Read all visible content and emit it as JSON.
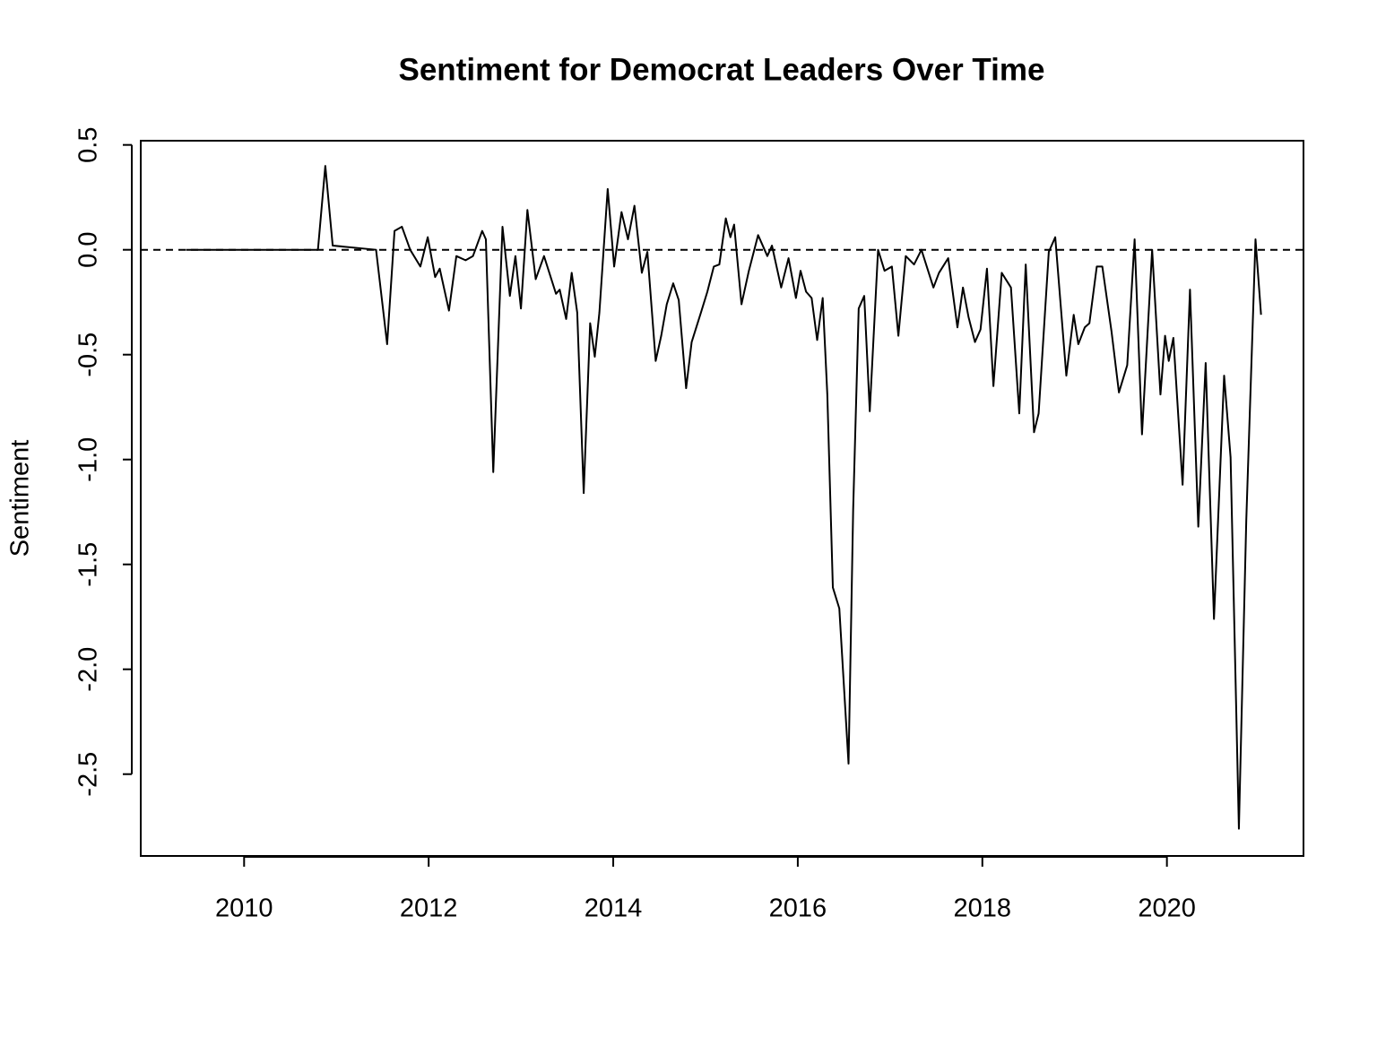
{
  "chart_data": {
    "type": "line",
    "title": "Sentiment for Democrat Leaders Over Time",
    "y_label": "Sentiment",
    "color": "#000000",
    "reference_line": 0,
    "x": [
      2009.37,
      2010.8,
      2010.88,
      2010.96,
      2011.43,
      2011.55,
      2011.63,
      2011.71,
      2011.8,
      2011.91,
      2011.99,
      2012.07,
      2012.12,
      2012.22,
      2012.3,
      2012.4,
      2012.48,
      2012.58,
      2012.62,
      2012.7,
      2012.8,
      2012.88,
      2012.94,
      2013.0,
      2013.07,
      2013.16,
      2013.25,
      2013.38,
      2013.42,
      2013.49,
      2013.55,
      2013.61,
      2013.68,
      2013.75,
      2013.8,
      2013.85,
      2013.94,
      2014.01,
      2014.09,
      2014.16,
      2014.23,
      2014.31,
      2014.37,
      2014.46,
      2014.52,
      2014.58,
      2014.65,
      2014.71,
      2014.79,
      2014.85,
      2014.95,
      2015.02,
      2015.09,
      2015.15,
      2015.22,
      2015.27,
      2015.31,
      2015.39,
      2015.47,
      2015.57,
      2015.67,
      2015.72,
      2015.82,
      2015.9,
      2015.98,
      2016.03,
      2016.09,
      2016.15,
      2016.21,
      2016.27,
      2016.32,
      2016.38,
      2016.45,
      2016.55,
      2016.6,
      2016.66,
      2016.72,
      2016.78,
      2016.87,
      2016.94,
      2017.02,
      2017.09,
      2017.17,
      2017.26,
      2017.34,
      2017.47,
      2017.53,
      2017.63,
      2017.73,
      2017.79,
      2017.85,
      2017.92,
      2017.98,
      2018.05,
      2018.12,
      2018.21,
      2018.31,
      2018.4,
      2018.47,
      2018.56,
      2018.61,
      2018.72,
      2018.79,
      2018.91,
      2018.99,
      2019.04,
      2019.11,
      2019.16,
      2019.24,
      2019.3,
      2019.4,
      2019.48,
      2019.57,
      2019.65,
      2019.73,
      2019.84,
      2019.93,
      2019.98,
      2020.02,
      2020.07,
      2020.17,
      2020.25,
      2020.34,
      2020.42,
      2020.51,
      2020.62,
      2020.69,
      2020.78,
      2020.86,
      2020.96,
      2021.02
    ],
    "values": [
      0,
      0,
      0.4,
      0.02,
      0,
      -0.45,
      0.09,
      0.11,
      0,
      -0.08,
      0.06,
      -0.13,
      -0.09,
      -0.29,
      -0.03,
      -0.05,
      -0.03,
      0.09,
      0.05,
      -1.06,
      0.11,
      -0.22,
      -0.03,
      -0.28,
      0.19,
      -0.14,
      -0.03,
      -0.21,
      -0.19,
      -0.33,
      -0.11,
      -0.3,
      -1.16,
      -0.35,
      -0.51,
      -0.3,
      0.29,
      -0.08,
      0.18,
      0.05,
      0.21,
      -0.11,
      -0.01,
      -0.53,
      -0.41,
      -0.26,
      -0.16,
      -0.24,
      -0.66,
      -0.44,
      -0.3,
      -0.2,
      -0.08,
      -0.07,
      0.15,
      0.06,
      0.12,
      -0.26,
      -0.1,
      0.07,
      -0.03,
      0.02,
      -0.18,
      -0.04,
      -0.23,
      -0.1,
      -0.2,
      -0.23,
      -0.43,
      -0.23,
      -0.69,
      -1.61,
      -1.71,
      -2.45,
      -1.24,
      -0.28,
      -0.22,
      -0.77,
      0,
      -0.1,
      -0.08,
      -0.41,
      -0.03,
      -0.07,
      0,
      -0.18,
      -0.11,
      -0.04,
      -0.37,
      -0.18,
      -0.32,
      -0.44,
      -0.38,
      -0.09,
      -0.65,
      -0.11,
      -0.18,
      -0.78,
      -0.07,
      -0.87,
      -0.78,
      -0.01,
      0.06,
      -0.6,
      -0.31,
      -0.45,
      -0.37,
      -0.35,
      -0.08,
      -0.08,
      -0.39,
      -0.68,
      -0.55,
      0.05,
      -0.88,
      0,
      -0.69,
      -0.41,
      -0.53,
      -0.42,
      -1.12,
      -0.19,
      -1.32,
      -0.54,
      -1.76,
      -0.6,
      -0.99,
      -2.76,
      -1.29,
      0.05,
      -0.31
    ],
    "xlim": [
      2008.88,
      2021.48
    ],
    "ylim": [
      -2.89,
      0.52
    ],
    "xticks": [
      2010,
      2012,
      2014,
      2016,
      2018,
      2020
    ],
    "yticks": [
      0.5,
      {
        "value": 0,
        "label": "0.0"
      },
      -0.5,
      {
        "value": -1,
        "label": "-1.0"
      },
      -1.5,
      {
        "value": -2,
        "label": "-2.0"
      },
      -2.5
    ]
  }
}
